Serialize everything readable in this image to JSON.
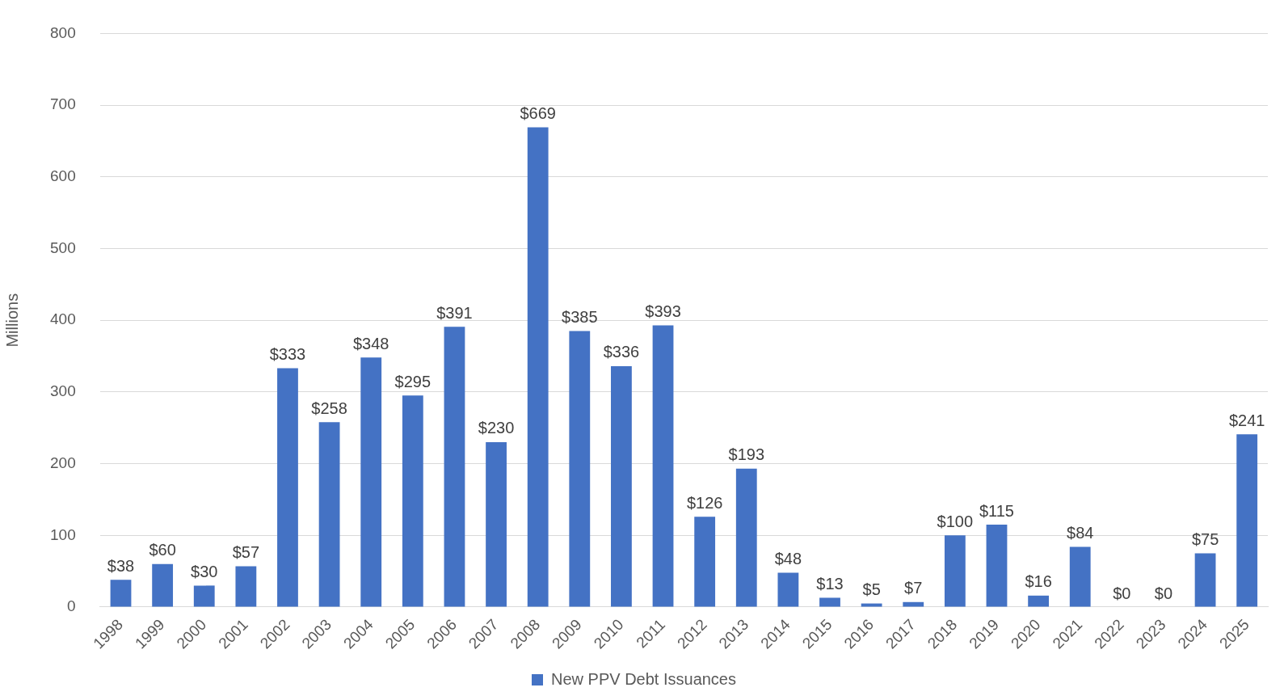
{
  "chart_data": {
    "type": "bar",
    "ylabel": "Millions",
    "categories": [
      "1998",
      "1999",
      "2000",
      "2001",
      "2002",
      "2003",
      "2004",
      "2005",
      "2006",
      "2007",
      "2008",
      "2009",
      "2010",
      "2011",
      "2012",
      "2013",
      "2014",
      "2015",
      "2016",
      "2017",
      "2018",
      "2019",
      "2020",
      "2021",
      "2022",
      "2023",
      "2024",
      "2025"
    ],
    "series": [
      {
        "name": "New PPV Debt Issuances",
        "color": "#4472c4",
        "values": [
          38,
          60,
          30,
          57,
          333,
          258,
          348,
          295,
          391,
          230,
          669,
          385,
          336,
          393,
          126,
          193,
          48,
          13,
          5,
          7,
          100,
          115,
          16,
          84,
          0,
          0,
          75,
          241
        ],
        "value_labels": [
          "$38",
          "$60",
          "$30",
          "$57",
          "$333",
          "$258",
          "$348",
          "$295",
          "$391",
          "$230",
          "$669",
          "$385",
          "$336",
          "$393",
          "$126",
          "$193",
          "$48",
          "$13",
          "$5",
          "$7",
          "$100",
          "$115",
          "$16",
          "$84",
          "$0",
          "$0",
          "$75",
          "$241"
        ]
      }
    ],
    "ylim": [
      0,
      800
    ],
    "yticks": [
      0,
      100,
      200,
      300,
      400,
      500,
      600,
      700,
      800
    ],
    "grid": "y",
    "legend": "bottom"
  }
}
